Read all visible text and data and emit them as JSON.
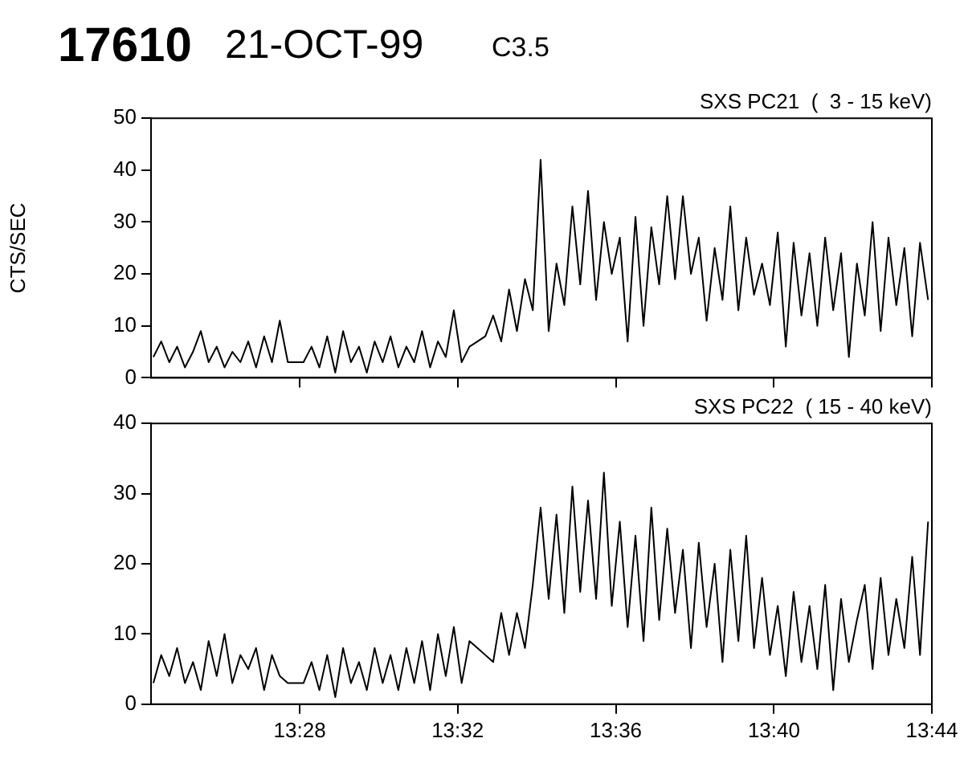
{
  "chart_data": [
    {
      "type": "line",
      "title": "SXS PC21  (  3 - 15 keV)",
      "ylabel": "CTS/SEC",
      "annotations": [
        "17610",
        "21-OCT-99",
        "C3.5"
      ],
      "x": [
        13.405,
        13.4083,
        13.4117,
        13.415,
        13.4183,
        13.4217,
        13.425,
        13.4283,
        13.4317,
        13.435,
        13.4383,
        13.4417,
        13.445,
        13.4483,
        13.4517,
        13.455,
        13.4583,
        13.4617,
        13.465,
        13.4683,
        13.4717,
        13.475,
        13.4783,
        13.4817,
        13.485,
        13.4883,
        13.4917,
        13.495,
        13.4983,
        13.5017,
        13.505,
        13.5083,
        13.5117,
        13.515,
        13.5183,
        13.5217,
        13.525,
        13.5283,
        13.5317,
        13.535,
        13.5383,
        13.5417,
        13.545,
        13.5483,
        13.5517,
        13.555,
        13.5583,
        13.5617,
        13.565,
        13.5683,
        13.5717,
        13.575,
        13.5783,
        13.5817,
        13.585,
        13.5883,
        13.5917,
        13.595,
        13.5983,
        13.6017,
        13.605,
        13.6083,
        13.6117,
        13.615,
        13.6183,
        13.6217,
        13.625,
        13.6283,
        13.6317,
        13.635,
        13.6383,
        13.6417,
        13.645,
        13.6483,
        13.6517,
        13.655,
        13.6583,
        13.6617,
        13.665,
        13.6683,
        13.6717,
        13.675,
        13.6783,
        13.6817,
        13.685,
        13.6883,
        13.6917,
        13.695,
        13.6983,
        13.7017,
        13.705,
        13.7083,
        13.7117,
        13.715,
        13.7183,
        13.7217,
        13.725,
        13.7283,
        13.7317
      ],
      "series": [
        {
          "color": "#000000",
          "values": [
            4,
            7,
            3,
            6,
            2,
            5,
            9,
            3,
            6,
            2,
            5,
            3,
            7,
            2,
            8,
            3,
            11,
            3,
            3,
            3,
            6,
            2,
            8,
            1,
            9,
            3,
            6,
            1,
            7,
            3,
            8,
            2,
            6,
            3,
            9,
            2,
            7,
            4,
            13,
            3,
            6,
            7,
            8,
            12,
            7,
            17,
            9,
            19,
            13,
            42,
            9,
            22,
            14,
            33,
            18,
            36,
            15,
            30,
            20,
            27,
            7,
            31,
            10,
            29,
            18,
            35,
            19,
            35,
            20,
            27,
            11,
            25,
            15,
            33,
            13,
            27,
            16,
            22,
            14,
            28,
            6,
            26,
            12,
            24,
            10,
            27,
            13,
            24,
            4,
            22,
            12,
            30,
            9,
            27,
            14,
            25,
            8,
            26,
            15
          ]
        }
      ],
      "xlim": [
        13.404,
        13.7333
      ],
      "xticks": [
        {
          "value": 13.4667,
          "label": null
        },
        {
          "value": 13.5333,
          "label": null
        },
        {
          "value": 13.6,
          "label": null
        },
        {
          "value": 13.6667,
          "label": null
        },
        {
          "value": 13.7333,
          "label": null
        }
      ],
      "ylim": [
        0,
        50
      ],
      "yticks": [
        0,
        10,
        20,
        30,
        40,
        50
      ],
      "tick_labels": "y"
    },
    {
      "type": "line",
      "title": "SXS PC22  ( 15 - 40 keV)",
      "x": [
        13.405,
        13.4083,
        13.4117,
        13.415,
        13.4183,
        13.4217,
        13.425,
        13.4283,
        13.4317,
        13.435,
        13.4383,
        13.4417,
        13.445,
        13.4483,
        13.4517,
        13.455,
        13.4583,
        13.4617,
        13.465,
        13.4683,
        13.4717,
        13.475,
        13.4783,
        13.4817,
        13.485,
        13.4883,
        13.4917,
        13.495,
        13.4983,
        13.5017,
        13.505,
        13.5083,
        13.5117,
        13.515,
        13.5183,
        13.5217,
        13.525,
        13.5283,
        13.5317,
        13.535,
        13.5383,
        13.5417,
        13.545,
        13.5483,
        13.5517,
        13.555,
        13.5583,
        13.5617,
        13.565,
        13.5683,
        13.5717,
        13.575,
        13.5783,
        13.5817,
        13.585,
        13.5883,
        13.5917,
        13.595,
        13.5983,
        13.6017,
        13.605,
        13.6083,
        13.6117,
        13.615,
        13.6183,
        13.6217,
        13.625,
        13.6283,
        13.6317,
        13.635,
        13.6383,
        13.6417,
        13.645,
        13.6483,
        13.6517,
        13.655,
        13.6583,
        13.6617,
        13.665,
        13.6683,
        13.6717,
        13.675,
        13.6783,
        13.6817,
        13.685,
        13.6883,
        13.6917,
        13.695,
        13.6983,
        13.7017,
        13.705,
        13.7083,
        13.7117,
        13.715,
        13.7183,
        13.7217,
        13.725,
        13.7283,
        13.7317
      ],
      "series": [
        {
          "color": "#000000",
          "values": [
            3,
            7,
            4,
            8,
            3,
            6,
            2,
            9,
            4,
            10,
            3,
            7,
            5,
            8,
            2,
            7,
            4,
            3,
            3,
            3,
            6,
            2,
            7,
            1,
            8,
            3,
            6,
            2,
            8,
            3,
            7,
            2,
            8,
            3,
            9,
            2,
            10,
            4,
            11,
            3,
            9,
            8,
            7,
            6,
            13,
            7,
            13,
            8,
            17,
            28,
            15,
            27,
            13,
            31,
            16,
            29,
            15,
            33,
            14,
            26,
            11,
            24,
            9,
            28,
            12,
            25,
            13,
            22,
            8,
            23,
            11,
            20,
            6,
            22,
            9,
            24,
            8,
            18,
            7,
            14,
            4,
            16,
            6,
            14,
            5,
            17,
            2,
            15,
            6,
            12,
            17,
            5,
            18,
            7,
            15,
            8,
            21,
            7,
            26
          ]
        }
      ],
      "xlim": [
        13.404,
        13.7333
      ],
      "xticks": [
        {
          "value": 13.4667,
          "label": "13:28"
        },
        {
          "value": 13.5333,
          "label": "13:32"
        },
        {
          "value": 13.6,
          "label": "13:36"
        },
        {
          "value": 13.6667,
          "label": "13:40"
        },
        {
          "value": 13.7333,
          "label": "13:44"
        }
      ],
      "ylim": [
        0,
        40
      ],
      "yticks": [
        0,
        10,
        20,
        30,
        40
      ]
    }
  ]
}
